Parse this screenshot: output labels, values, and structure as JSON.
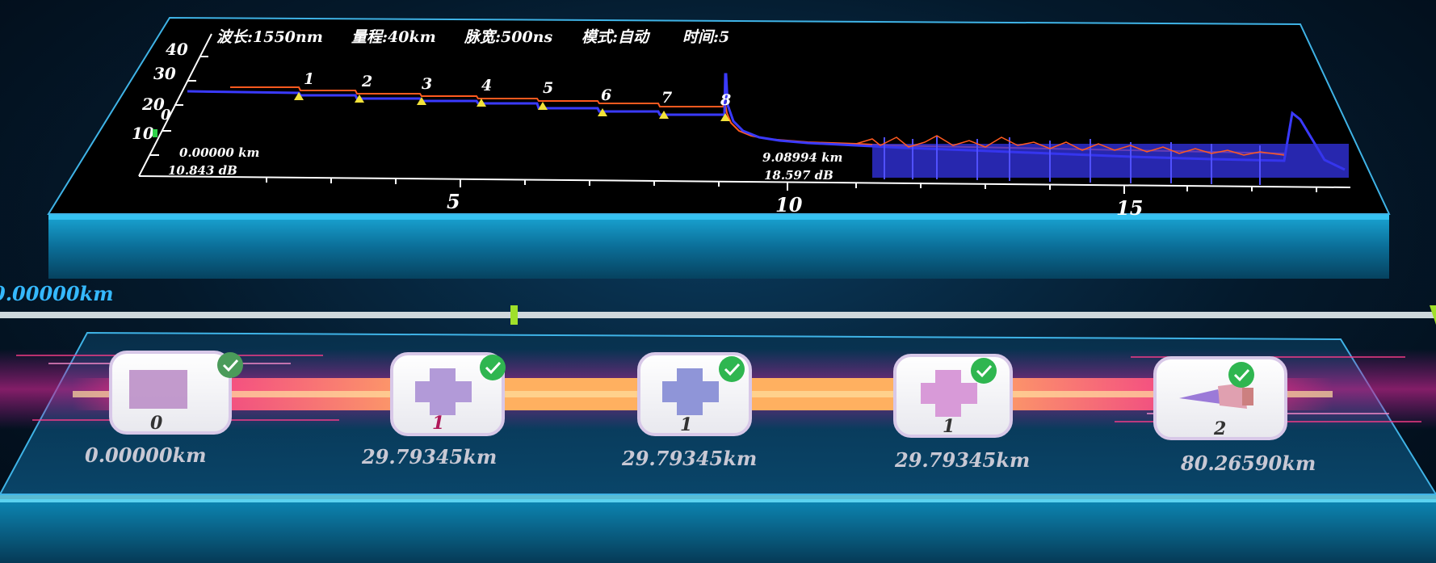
{
  "otdr": {
    "header": {
      "wavelength": "波长:1550nm",
      "range": "量程:40km",
      "pulse": "脉宽:500ns",
      "mode": "模式:自动",
      "time": "时间:5"
    },
    "y_ticks": [
      "40",
      "30",
      "20",
      "10"
    ],
    "y_small": "0",
    "x_ticks": [
      "5",
      "10",
      "15"
    ],
    "cursor_a": {
      "dist": "0.00000 km",
      "loss": "10.843 dB"
    },
    "cursor_b": {
      "dist": "9.08994 km",
      "loss": "18.597 dB"
    },
    "event_labels": [
      "1",
      "2",
      "3",
      "4",
      "5",
      "6",
      "7",
      "8"
    ],
    "colors": {
      "trace_red": "#ff5a1f",
      "trace_blue": "#3a3aff",
      "marker": "#f2e23a"
    }
  },
  "chart_data": {
    "type": "line",
    "title": "",
    "xlabel": "",
    "ylabel": "",
    "xlim": [
      0,
      17.5
    ],
    "ylim": [
      0,
      40
    ],
    "x_ticks": [
      5,
      10,
      15
    ],
    "y_ticks": [
      10,
      20,
      30,
      40
    ],
    "events": [
      {
        "label": "1",
        "x": 2.6
      },
      {
        "label": "2",
        "x": 3.5
      },
      {
        "label": "3",
        "x": 4.4
      },
      {
        "label": "4",
        "x": 5.3
      },
      {
        "label": "5",
        "x": 6.2
      },
      {
        "label": "6",
        "x": 7.1
      },
      {
        "label": "7",
        "x": 8.0
      },
      {
        "label": "8",
        "x": 9.09
      }
    ],
    "series": [
      {
        "values_desc": "red trace"
      },
      {
        "values_desc": "blue trace"
      }
    ]
  },
  "link": {
    "start_label": "0.00000km",
    "nodes": [
      {
        "type": "source",
        "count": "0",
        "distance": "0.00000km"
      },
      {
        "type": "connector",
        "count": "1",
        "distance": "29.79345km"
      },
      {
        "type": "connector",
        "count": "1",
        "distance": "29.79345km"
      },
      {
        "type": "connector",
        "count": "1",
        "distance": "29.79345km"
      },
      {
        "type": "end",
        "count": "2",
        "distance": "80.26590km"
      }
    ]
  }
}
